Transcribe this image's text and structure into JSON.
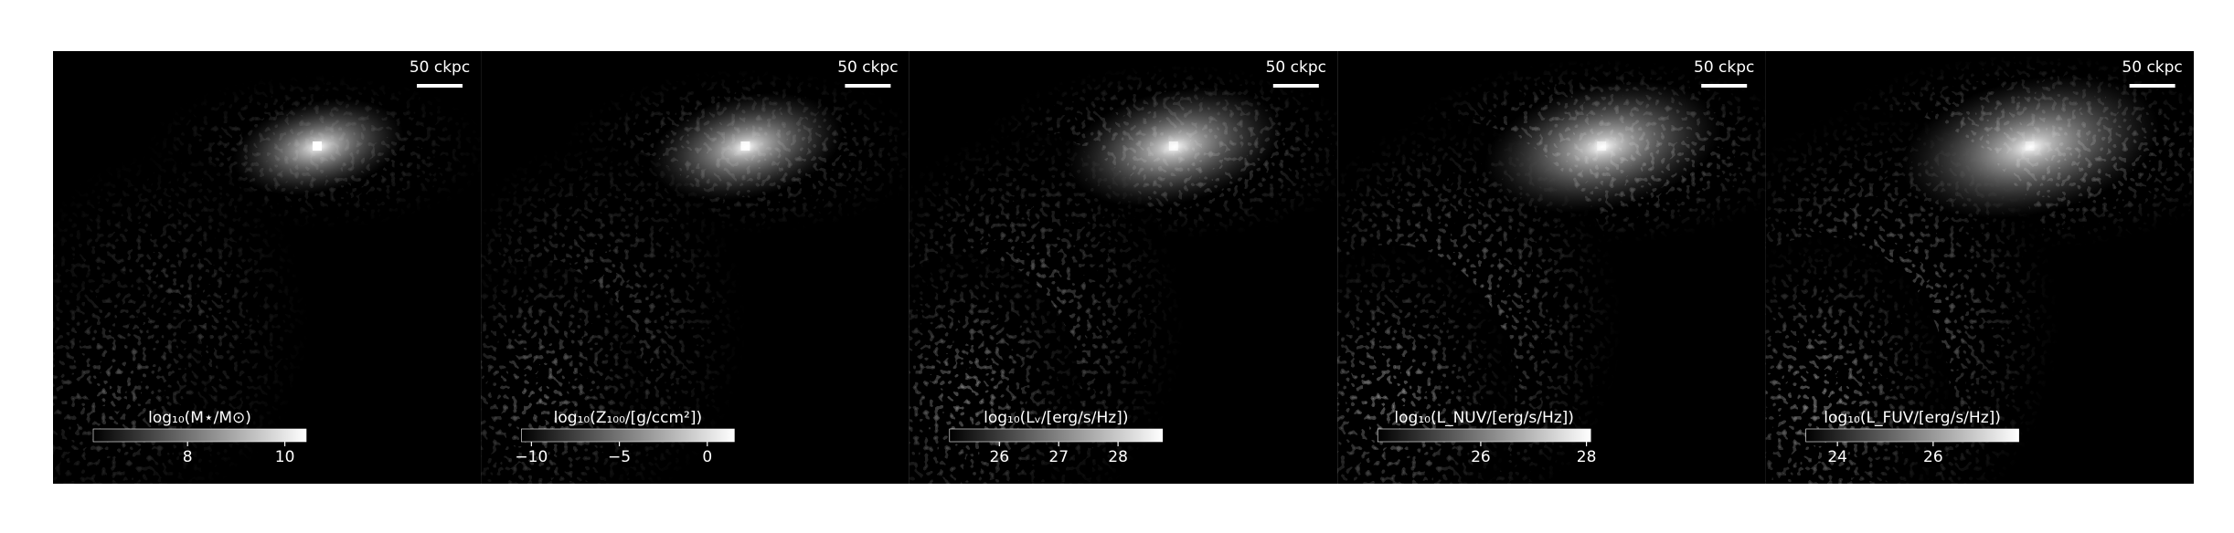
{
  "chart_data": [
    {
      "type": "image",
      "scale_bar": "50 ckpc",
      "colorbar_label": "log₁₀(M⋆/M⊙)",
      "clim": [
        6.06,
        10.44
      ],
      "cticks": [
        8,
        10
      ],
      "cmap": "gray"
    },
    {
      "type": "image",
      "scale_bar": "50 ckpc",
      "colorbar_label": "log₁₀(Z₁₀₀/[g/ccm²])",
      "clim": [
        -10.57,
        1.54
      ],
      "cticks": [
        {
          "value": -10,
          "label": "−10"
        },
        {
          "value": -5,
          "label": "−5"
        },
        0
      ],
      "cmap": "gray"
    },
    {
      "type": "image",
      "scale_bar": "50 ckpc",
      "colorbar_label": "log₁₀(Lᵥ/[erg/s/Hz])",
      "clim": [
        25.16,
        28.75
      ],
      "cticks": [
        26,
        27,
        28
      ],
      "cmap": "gray"
    },
    {
      "type": "image",
      "scale_bar": "50 ckpc",
      "colorbar_label": "log₁₀(L_NUV/[erg/s/Hz])",
      "clim": [
        24.05,
        28.08
      ],
      "cticks": [
        26,
        28
      ],
      "cmap": "gray"
    },
    {
      "type": "image",
      "scale_bar": "50 ckpc",
      "colorbar_label": "log₁₀(L_FUV/[erg/s/Hz])",
      "clim": [
        23.34,
        27.79
      ],
      "cticks": [
        24,
        26
      ],
      "cmap": "gray"
    }
  ]
}
